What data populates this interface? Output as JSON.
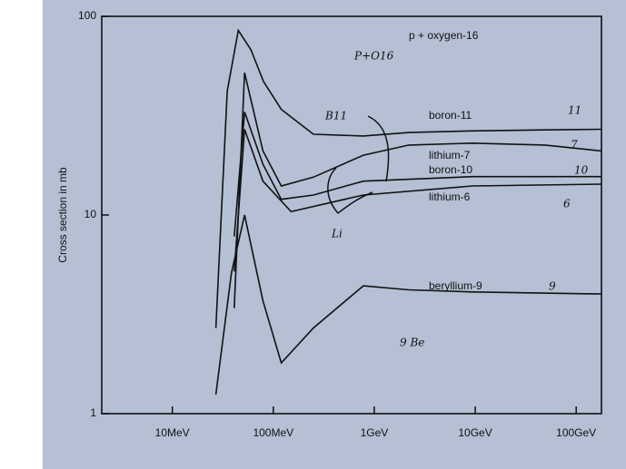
{
  "chart_data": {
    "type": "line",
    "title": "p + oxygen-16",
    "y_label": "Cross section in mb",
    "log_x": true,
    "log_y": true,
    "xlim": [
      2,
      178000
    ],
    "ylim": [
      1,
      100
    ],
    "xticks": [
      {
        "value": 10,
        "label": "10MeV"
      },
      {
        "value": 100,
        "label": "100MeV"
      },
      {
        "value": 1000,
        "label": "1GeV"
      },
      {
        "value": 10000,
        "label": "10GeV"
      },
      {
        "value": 100000,
        "label": "100GeV"
      }
    ],
    "yticks": [
      1,
      10,
      100
    ],
    "series": [
      {
        "name": "boron-11",
        "color": "#111111",
        "x": [
          27,
          35,
          45,
          60,
          80,
          120,
          250,
          780,
          2200,
          9400,
          49000,
          178000
        ],
        "values": [
          2.7,
          42,
          85,
          68,
          47,
          34,
          25.5,
          25,
          26,
          26.5,
          26.8,
          27
        ]
      },
      {
        "name": "lithium-7",
        "color": "#111111",
        "x": [
          41,
          52,
          79,
          120,
          250,
          780,
          2200,
          9400,
          49000,
          178000
        ],
        "values": [
          3.4,
          52,
          21,
          14,
          15.5,
          20,
          22.5,
          23,
          22.5,
          21
        ]
      },
      {
        "name": "boron-10",
        "color": "#111111",
        "x": [
          41,
          52,
          79,
          120,
          250,
          780,
          9400,
          178000
        ],
        "values": [
          7.8,
          33,
          18,
          12,
          12.6,
          14.8,
          15.6,
          15.6
        ]
      },
      {
        "name": "lithium-6",
        "color": "#111111",
        "x": [
          41,
          52,
          79,
          150,
          780,
          9400,
          178000
        ],
        "values": [
          5.2,
          27,
          14.8,
          10.4,
          12.6,
          14,
          14.3
        ]
      },
      {
        "name": "beryllium-9",
        "color": "#111111",
        "x": [
          27,
          38.5,
          52,
          79,
          120,
          250,
          780,
          2200,
          9400,
          178000
        ],
        "values": [
          1.25,
          5.1,
          10,
          3.7,
          1.8,
          2.7,
          4.4,
          4.2,
          4.1,
          4
        ]
      }
    ],
    "annotations": [
      {
        "text": "P+O16",
        "color": "#1a2fa8"
      },
      {
        "text": "B11",
        "color": "#111111"
      },
      {
        "text": "Li",
        "color": "#111111"
      },
      {
        "text": "9 Be",
        "color": "#111111"
      },
      {
        "text": "11",
        "color": "#111111"
      },
      {
        "text": "7",
        "color": "#111111"
      },
      {
        "text": "10",
        "color": "#111111"
      },
      {
        "text": "6",
        "color": "#111111"
      },
      {
        "text": "9",
        "color": "#1a2fa8"
      }
    ]
  }
}
